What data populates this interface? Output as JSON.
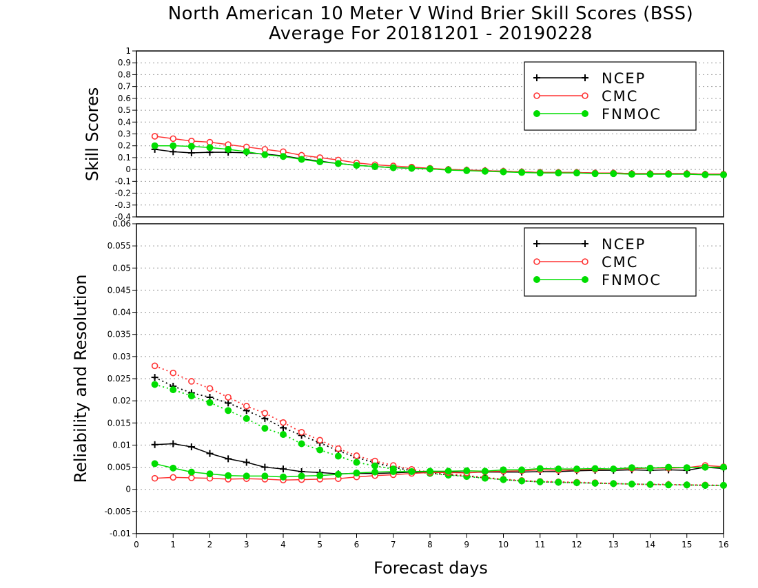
{
  "chart_data": [
    {
      "type": "line",
      "panel": "top",
      "title": "North American 10 Meter V Wind Brier Skill Scores (BSS)",
      "subtitle": "Average For 20181201 - 20190228",
      "xlabel": "",
      "ylabel": "Skill Scores",
      "xlim": [
        0,
        16
      ],
      "ylim": [
        -0.4,
        1
      ],
      "yticks": [
        "-0.4",
        "-0.3",
        "-0.2",
        "-0.1",
        "0",
        "0.1",
        "0.2",
        "0.3",
        "0.4",
        "0.5",
        "0.6",
        "0.7",
        "0.8",
        "0.9",
        "1"
      ],
      "xticks": [],
      "grid": "horizontal dotted",
      "legend_position": "top-right",
      "x": [
        0.5,
        1,
        1.5,
        2,
        2.5,
        3,
        3.5,
        4,
        4.5,
        5,
        5.5,
        6,
        6.5,
        7,
        7.5,
        8,
        8.5,
        9,
        9.5,
        10,
        10.5,
        11,
        11.5,
        12,
        12.5,
        13,
        13.5,
        14,
        14.5,
        15,
        15.5,
        16
      ],
      "series": [
        {
          "name": "NCEP",
          "color": "#000000",
          "marker": "plus",
          "style": "solid",
          "values": [
            0.17,
            0.15,
            0.14,
            0.145,
            0.145,
            0.14,
            0.13,
            0.115,
            0.09,
            0.07,
            0.05,
            0.035,
            0.025,
            0.015,
            0.01,
            0.005,
            0,
            -0.005,
            -0.01,
            -0.015,
            -0.02,
            -0.025,
            -0.025,
            -0.025,
            -0.03,
            -0.03,
            -0.035,
            -0.035,
            -0.035,
            -0.035,
            -0.04,
            -0.04
          ]
        },
        {
          "name": "CMC",
          "color": "#ff3333",
          "marker": "open-circle",
          "style": "solid",
          "values": [
            0.28,
            0.26,
            0.24,
            0.23,
            0.21,
            0.19,
            0.17,
            0.15,
            0.12,
            0.1,
            0.08,
            0.055,
            0.04,
            0.03,
            0.02,
            0.01,
            0,
            -0.005,
            -0.01,
            -0.015,
            -0.02,
            -0.025,
            -0.025,
            -0.025,
            -0.03,
            -0.03,
            -0.035,
            -0.035,
            -0.035,
            -0.035,
            -0.04,
            -0.04
          ]
        },
        {
          "name": "FNMOC",
          "color": "#00dd00",
          "marker": "filled-circle",
          "style": "solid",
          "values": [
            0.2,
            0.2,
            0.195,
            0.185,
            0.17,
            0.15,
            0.125,
            0.11,
            0.085,
            0.065,
            0.05,
            0.035,
            0.025,
            0.015,
            0.01,
            0.005,
            -0.005,
            -0.01,
            -0.015,
            -0.02,
            -0.025,
            -0.03,
            -0.03,
            -0.03,
            -0.035,
            -0.035,
            -0.04,
            -0.04,
            -0.04,
            -0.04,
            -0.045,
            -0.045
          ]
        }
      ]
    },
    {
      "type": "line",
      "panel": "bottom",
      "xlabel": "Forecast days",
      "ylabel": "Reliability and Resolution",
      "xlim": [
        0,
        16
      ],
      "ylim": [
        -0.01,
        0.06
      ],
      "yticks": [
        "-0.01",
        "-0.005",
        "0",
        "0.005",
        "0.01",
        "0.015",
        "0.02",
        "0.025",
        "0.03",
        "0.035",
        "0.04",
        "0.045",
        "0.05",
        "0.055",
        "0.06"
      ],
      "xticks": [
        "0",
        "1",
        "2",
        "3",
        "4",
        "5",
        "6",
        "7",
        "8",
        "9",
        "10",
        "11",
        "12",
        "13",
        "14",
        "15",
        "16"
      ],
      "grid": "horizontal dotted",
      "legend_position": "top-right",
      "legend": [
        {
          "name": "NCEP",
          "color": "#000000",
          "marker": "plus"
        },
        {
          "name": "CMC",
          "color": "#ff3333",
          "marker": "open-circle"
        },
        {
          "name": "FNMOC",
          "color": "#00dd00",
          "marker": "filled-circle"
        }
      ],
      "x": [
        0.5,
        1,
        1.5,
        2,
        2.5,
        3,
        3.5,
        4,
        4.5,
        5,
        5.5,
        6,
        6.5,
        7,
        7.5,
        8,
        8.5,
        9,
        9.5,
        10,
        10.5,
        11,
        11.5,
        12,
        12.5,
        13,
        13.5,
        14,
        14.5,
        15,
        15.5,
        16
      ],
      "series": [
        {
          "model": "NCEP",
          "kind": "reliability",
          "color": "#000000",
          "marker": "plus",
          "style": "dotted",
          "values": [
            0.0253,
            0.0233,
            0.0218,
            0.0208,
            0.0195,
            0.0178,
            0.016,
            0.0139,
            0.0122,
            0.0105,
            0.0087,
            0.0072,
            0.006,
            0.005,
            0.0042,
            0.0037,
            0.0033,
            0.003,
            0.0026,
            0.0022,
            0.0019,
            0.0017,
            0.0016,
            0.0015,
            0.0014,
            0.0013,
            0.0012,
            0.0011,
            0.0011,
            0.001,
            0.0009,
            0.0009
          ]
        },
        {
          "model": "CMC",
          "kind": "reliability",
          "color": "#ff3333",
          "marker": "open-circle",
          "style": "dotted",
          "values": [
            0.0279,
            0.0263,
            0.0244,
            0.0228,
            0.0208,
            0.0188,
            0.0172,
            0.0151,
            0.0129,
            0.0111,
            0.0092,
            0.0076,
            0.0064,
            0.0054,
            0.0045,
            0.0039,
            0.0035,
            0.0031,
            0.0027,
            0.0023,
            0.002,
            0.0018,
            0.0017,
            0.0016,
            0.0015,
            0.0013,
            0.0012,
            0.0011,
            0.0011,
            0.001,
            0.001,
            0.0009
          ]
        },
        {
          "model": "FNMOC",
          "kind": "reliability",
          "color": "#00dd00",
          "marker": "filled-circle",
          "style": "dotted",
          "values": [
            0.0237,
            0.0225,
            0.0211,
            0.0196,
            0.0178,
            0.016,
            0.0138,
            0.0124,
            0.0103,
            0.0089,
            0.0075,
            0.0061,
            0.0053,
            0.0046,
            0.004,
            0.0036,
            0.0032,
            0.0029,
            0.0025,
            0.0022,
            0.0019,
            0.0017,
            0.0016,
            0.0015,
            0.0014,
            0.0013,
            0.0012,
            0.0011,
            0.001,
            0.001,
            0.0009,
            0.0009
          ]
        },
        {
          "model": "NCEP",
          "kind": "resolution",
          "color": "#000000",
          "marker": "plus",
          "style": "solid",
          "values": [
            0.0101,
            0.0103,
            0.0096,
            0.0081,
            0.0069,
            0.0061,
            0.005,
            0.0046,
            0.004,
            0.0038,
            0.0035,
            0.0036,
            0.0036,
            0.0037,
            0.0039,
            0.0039,
            0.004,
            0.0038,
            0.0039,
            0.0039,
            0.0039,
            0.004,
            0.004,
            0.0042,
            0.0043,
            0.0043,
            0.0044,
            0.0043,
            0.0044,
            0.0043,
            0.005,
            0.0047
          ]
        },
        {
          "model": "CMC",
          "kind": "resolution",
          "color": "#ff3333",
          "marker": "open-circle",
          "style": "solid",
          "values": [
            0.0025,
            0.0027,
            0.0026,
            0.0025,
            0.0023,
            0.0024,
            0.0023,
            0.0021,
            0.0022,
            0.0023,
            0.0024,
            0.0028,
            0.0031,
            0.0033,
            0.0036,
            0.0038,
            0.0038,
            0.0037,
            0.004,
            0.0041,
            0.0042,
            0.0044,
            0.0043,
            0.0044,
            0.0045,
            0.0046,
            0.0047,
            0.0048,
            0.0048,
            0.0049,
            0.0054,
            0.0051
          ]
        },
        {
          "model": "FNMOC",
          "kind": "resolution",
          "color": "#00dd00",
          "marker": "filled-circle",
          "style": "solid",
          "values": [
            0.0058,
            0.0048,
            0.0039,
            0.0035,
            0.0031,
            0.003,
            0.003,
            0.0028,
            0.003,
            0.0031,
            0.0034,
            0.0037,
            0.0039,
            0.004,
            0.004,
            0.0041,
            0.0041,
            0.0042,
            0.0041,
            0.0044,
            0.0044,
            0.0047,
            0.0046,
            0.0046,
            0.0047,
            0.0046,
            0.0049,
            0.0048,
            0.005,
            0.0049,
            0.005,
            0.005
          ]
        }
      ]
    }
  ]
}
